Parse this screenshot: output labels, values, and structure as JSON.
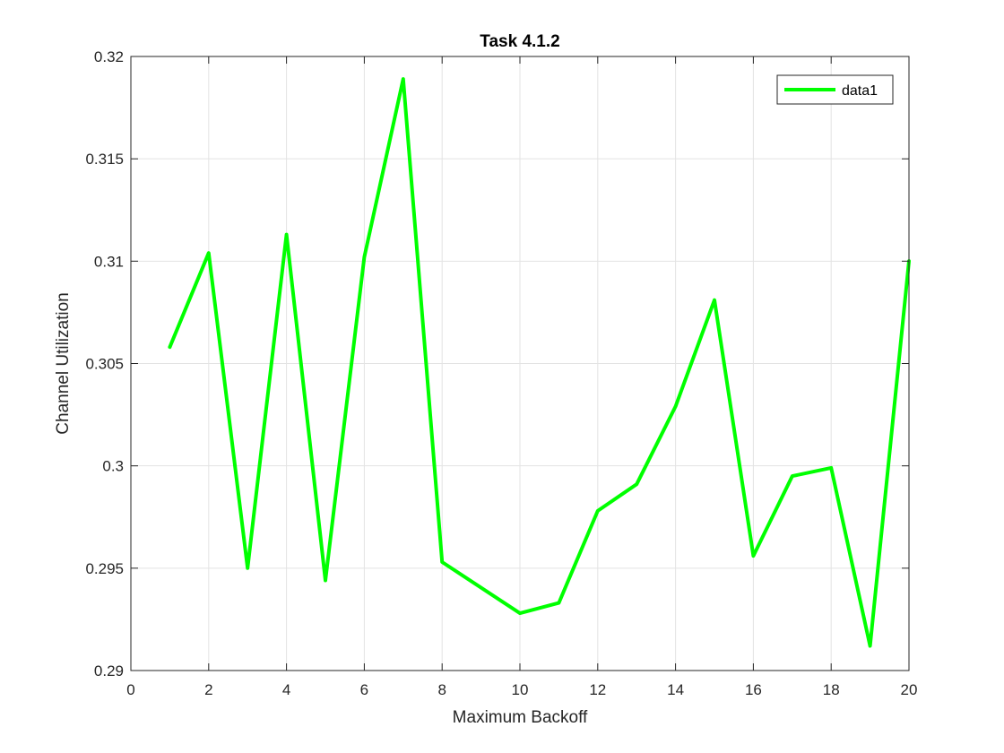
{
  "chart_data": {
    "type": "line",
    "title": "Task 4.1.2",
    "xlabel": "Maximum Backoff",
    "ylabel": "Channel Utilization",
    "xlim": [
      0,
      20
    ],
    "ylim": [
      0.29,
      0.32
    ],
    "xticks": [
      0,
      2,
      4,
      6,
      8,
      10,
      12,
      14,
      16,
      18,
      20
    ],
    "yticks": [
      0.29,
      0.295,
      0.3,
      0.305,
      0.31,
      0.315,
      0.32
    ],
    "xtick_labels": [
      "0",
      "2",
      "4",
      "6",
      "8",
      "10",
      "12",
      "14",
      "16",
      "18",
      "20"
    ],
    "ytick_labels": [
      "0.29",
      "0.295",
      "0.3",
      "0.305",
      "0.31",
      "0.315",
      "0.32"
    ],
    "grid": true,
    "legend_position": "top-right",
    "series": [
      {
        "name": "data1",
        "color": "#00ff00",
        "x": [
          1,
          2,
          3,
          4,
          5,
          6,
          7,
          8,
          10,
          11,
          12,
          13,
          14,
          15,
          16,
          17,
          18,
          19,
          20
        ],
        "y": [
          0.3058,
          0.3104,
          0.295,
          0.3113,
          0.2944,
          0.3102,
          0.3189,
          0.2953,
          0.2928,
          0.2933,
          0.2978,
          0.2991,
          0.3029,
          0.3081,
          0.2956,
          0.2995,
          0.2999,
          0.2912,
          0.31
        ]
      }
    ]
  }
}
